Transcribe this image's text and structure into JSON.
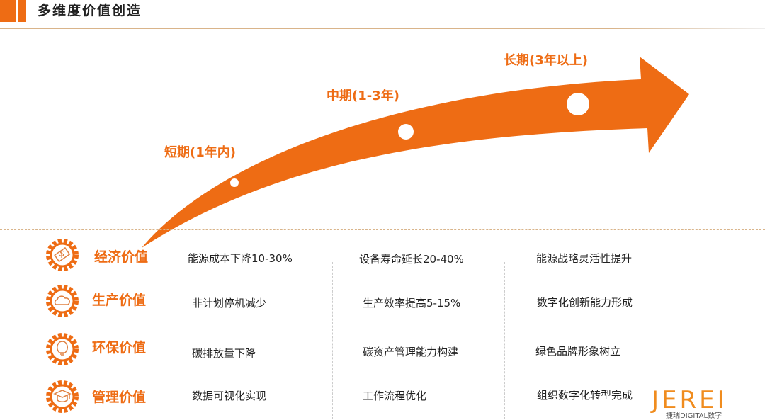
{
  "header": {
    "title": "多维度价值创造"
  },
  "phases": [
    "短期(1年内)",
    "中期(1-3年)",
    "长期(3年以上)"
  ],
  "rows": [
    {
      "category": "经济价值",
      "icon": "money-icon",
      "cells": [
        "能源成本下降10-30%",
        "设备寿命延长20-40%",
        "能源战略灵活性提升"
      ]
    },
    {
      "category": "生产价值",
      "icon": "cloud-icon",
      "cells": [
        "非计划停机减少",
        "生产效率提高5-15%",
        "数字化创新能力形成"
      ]
    },
    {
      "category": "环保价值",
      "icon": "lightbulb-icon",
      "cells": [
        "碳排放量下降",
        "碳资产管理能力构建",
        "绿色品牌形象树立"
      ]
    },
    {
      "category": "管理价值",
      "icon": "graduation-cap-icon",
      "cells": [
        "数据可视化实现",
        "工作流程优化",
        "组织数字化转型完成"
      ]
    }
  ],
  "logo": {
    "text": "JEREI",
    "sub": "捷瑞DIGITAL数字"
  },
  "colors": {
    "accent": "#ee6c14"
  }
}
